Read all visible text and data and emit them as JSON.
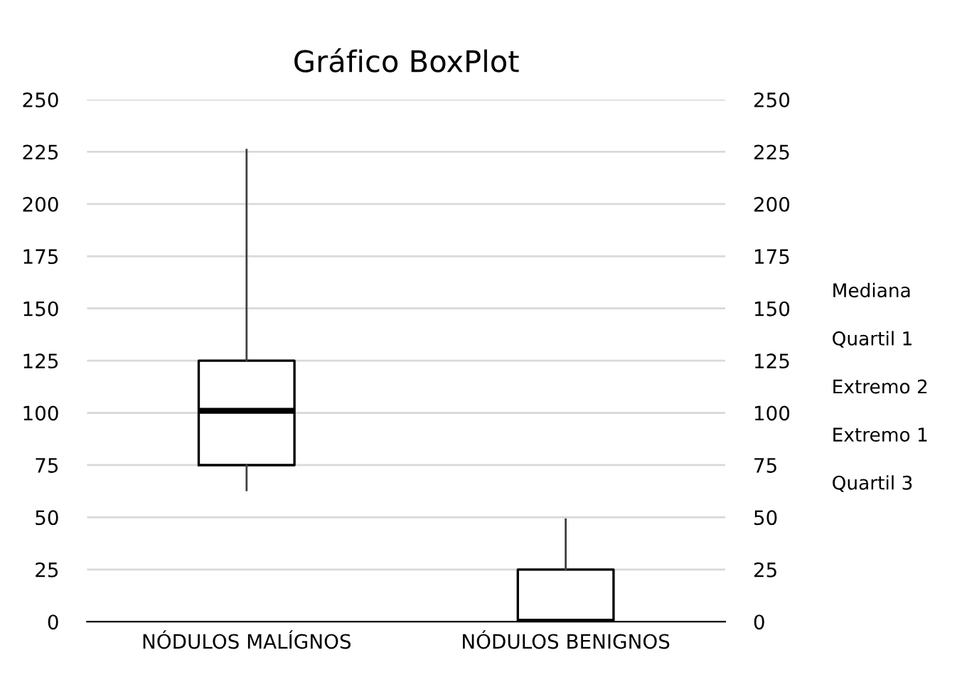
{
  "chart_data": {
    "type": "box",
    "title": "Gráfico BoxPlot",
    "categories": [
      "NÓDULOS MALÍGNOS",
      "NÓDULOS BENIGNOS"
    ],
    "boxes": [
      {
        "low": 63,
        "q1": 75,
        "median": 101,
        "q3": 125,
        "high": 226
      },
      {
        "low": 0,
        "q1": 0,
        "median": 0,
        "q3": 25,
        "high": 49
      }
    ],
    "ylim": [
      0,
      250
    ],
    "yticks": [
      0,
      25,
      50,
      75,
      100,
      125,
      150,
      175,
      200,
      225,
      250
    ],
    "y2lim": [
      0,
      250
    ],
    "y2ticks": [
      0,
      25,
      50,
      75,
      100,
      125,
      150,
      175,
      200,
      225,
      250
    ],
    "grid": "y",
    "annotations": [
      "Mediana",
      "Quartil 1",
      "Extremo 2",
      "Extremo 1",
      "Quartil 3"
    ]
  }
}
